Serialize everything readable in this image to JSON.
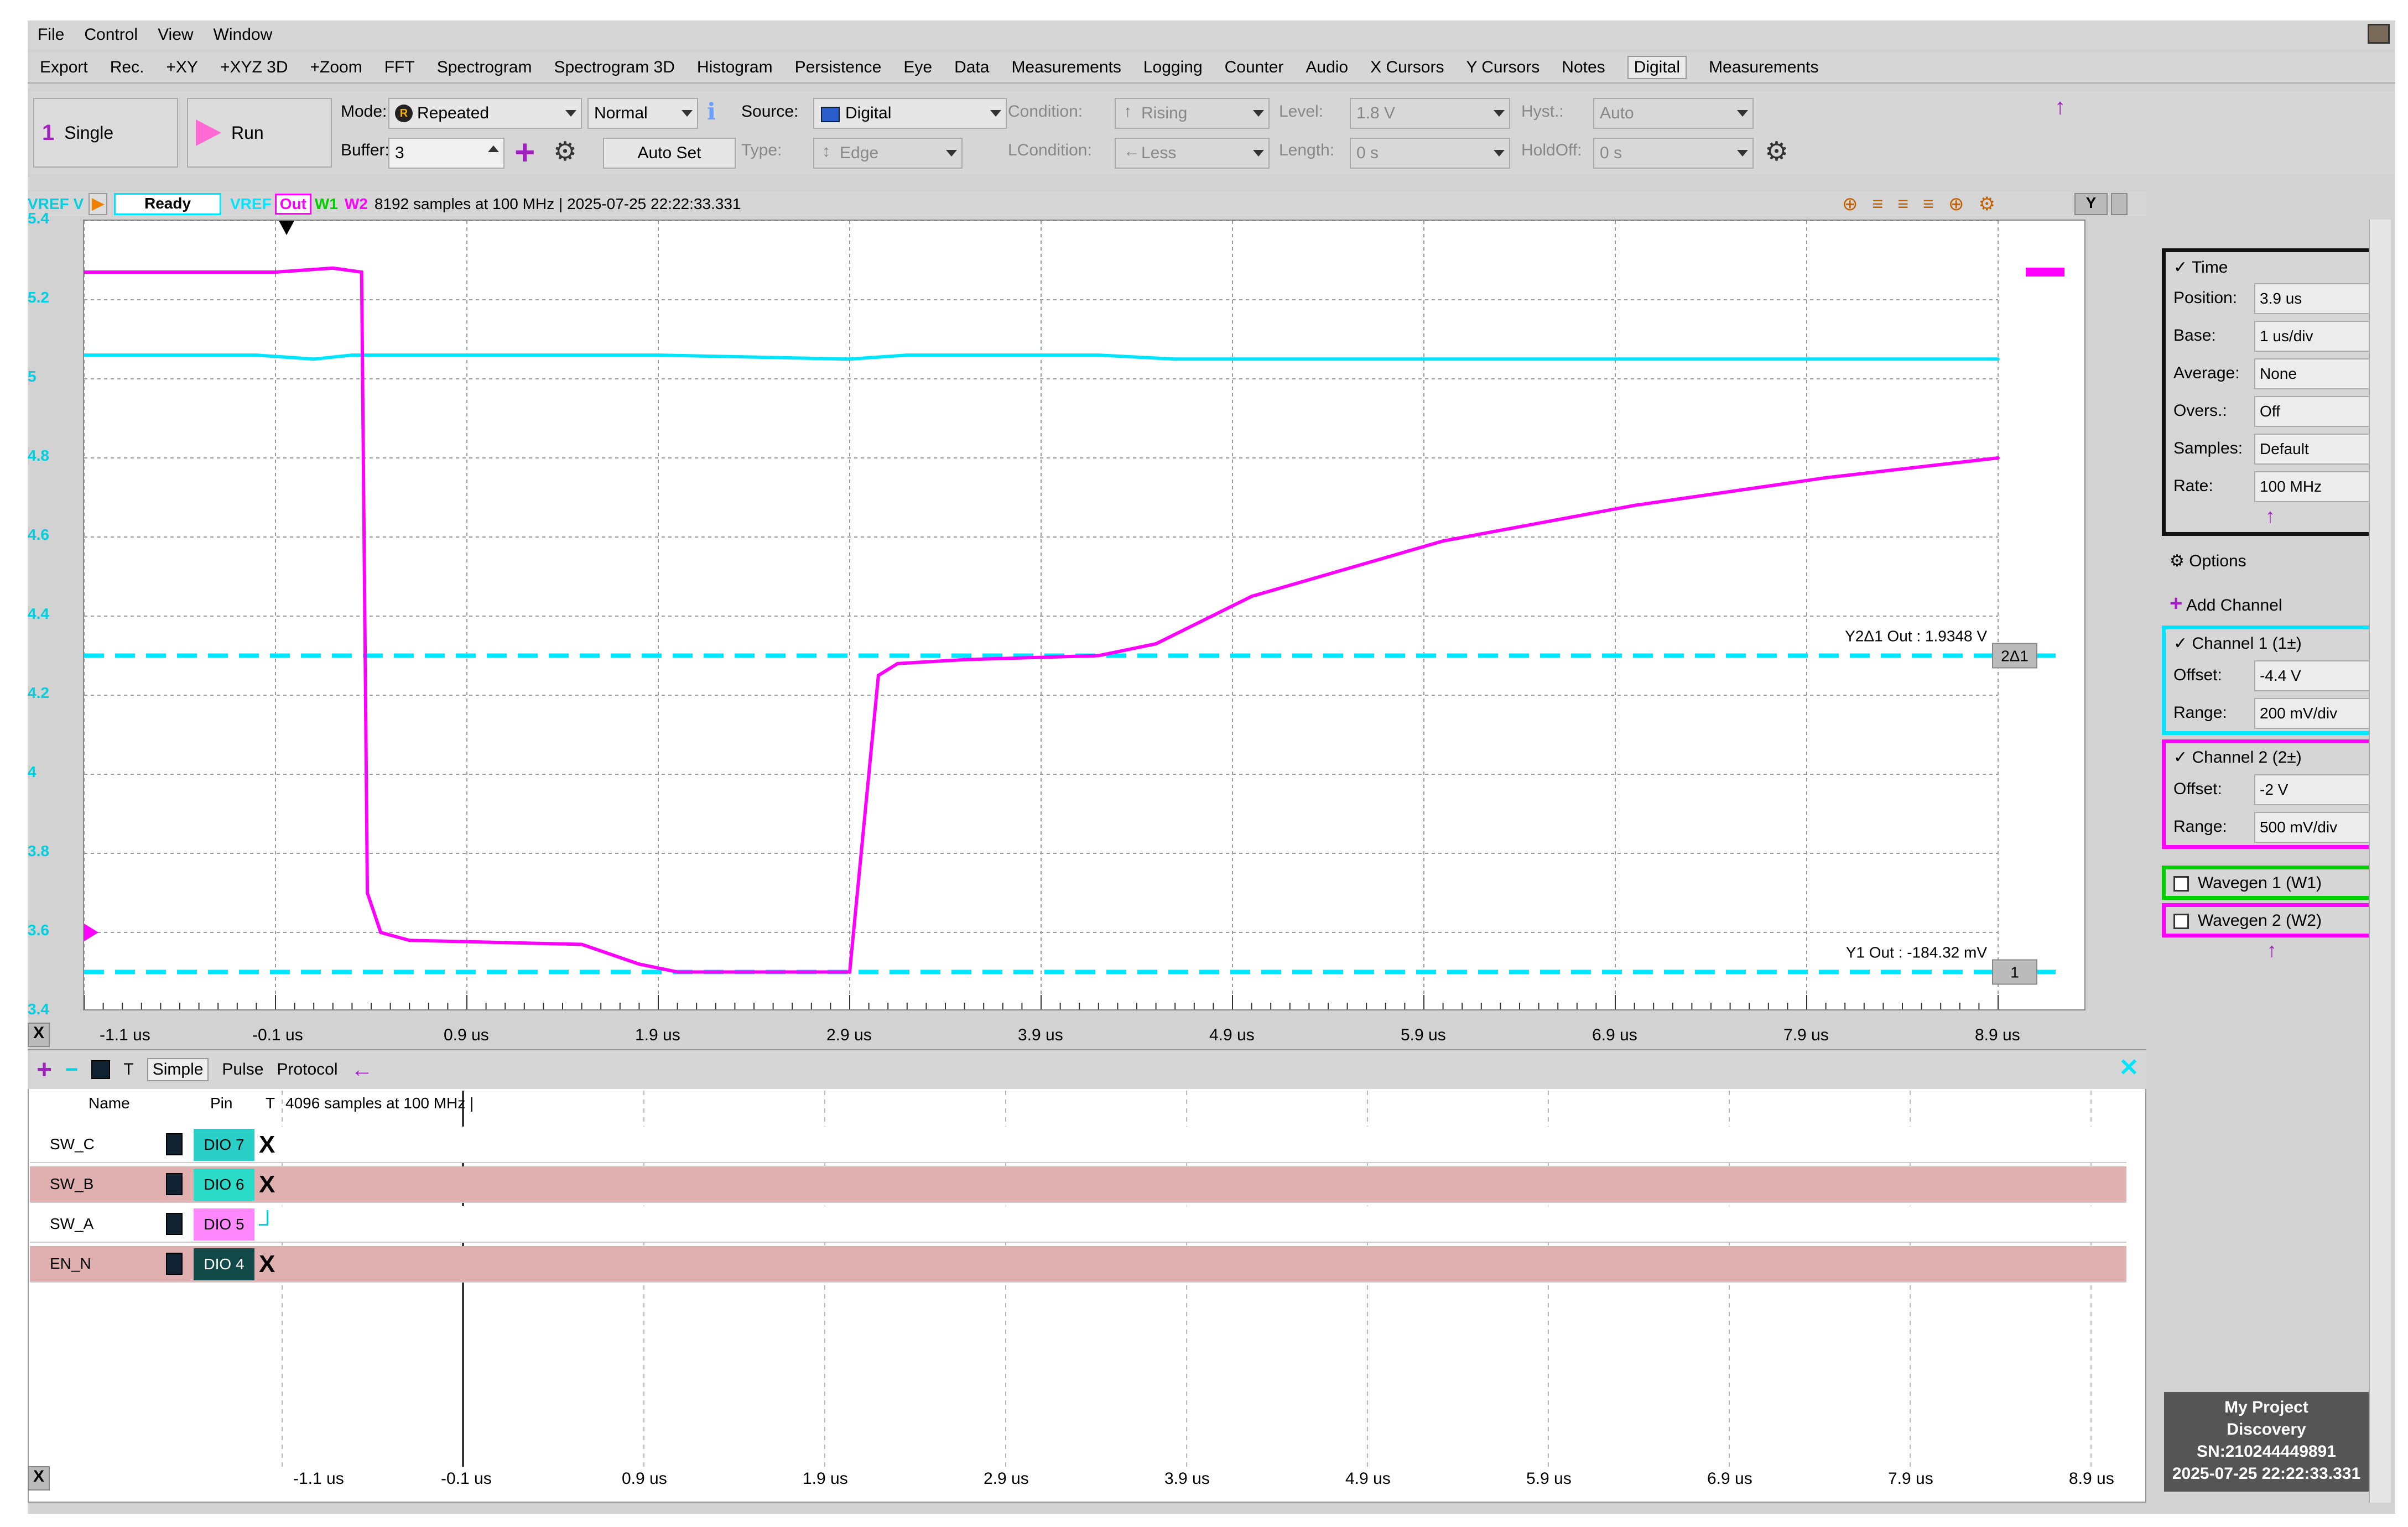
{
  "menu": {
    "items": [
      "File",
      "Control",
      "View",
      "Window"
    ]
  },
  "tabs": {
    "items": [
      "Export",
      "Rec.",
      "+XY",
      "+XYZ 3D",
      "+Zoom",
      "FFT",
      "Spectrogram",
      "Spectrogram 3D",
      "Histogram",
      "Persistence",
      "Eye",
      "Data",
      "Measurements",
      "Logging",
      "Counter",
      "Audio",
      "X Cursors",
      "Y Cursors",
      "Notes",
      "Digital",
      "Measurements"
    ],
    "active": "Digital"
  },
  "control": {
    "single_num": "1",
    "single": "Single",
    "run": "Run",
    "mode_label": "Mode:",
    "mode": "Repeated",
    "normal": "Normal",
    "buffer_label": "Buffer:",
    "buffer": "3",
    "autoset": "Auto Set",
    "source_label": "Source:",
    "source": "Digital",
    "type_label": "Type:",
    "type": "Edge",
    "condition_label": "Condition:",
    "condition": "Rising",
    "lcondition_label": "LCondition:",
    "lcondition": "Less",
    "level_label": "Level:",
    "level": "1.8 V",
    "length_label": "Length:",
    "length": "0 s",
    "hyst_label": "Hyst.:",
    "hyst": "Auto",
    "holdoff_label": "HoldOff:",
    "holdoff": "0 s"
  },
  "status": {
    "vref": "VREF V",
    "ready": "Ready",
    "ch_vref": "VREF",
    "ch_out": "Out",
    "ch_w1": "W1",
    "ch_w2": "W2",
    "info": "8192 samples at 100 MHz | 2025-07-25 22:22:33.331",
    "y_btn": "Y"
  },
  "scope": {
    "y_ticks": [
      "5.4",
      "5.2",
      "5",
      "4.8",
      "4.6",
      "4.4",
      "4.2",
      "4",
      "3.8",
      "3.6",
      "3.4"
    ],
    "x_ticks": [
      "-1.1 us",
      "-0.1 us",
      "0.9 us",
      "1.9 us",
      "2.9 us",
      "3.9 us",
      "4.9 us",
      "5.9 us",
      "6.9 us",
      "7.9 us",
      "8.9 us"
    ],
    "x_axis_btn": "X",
    "cursor1_label": "Y2Δ1 Out : 1.9348 V",
    "cursor1_tag": "2Δ1",
    "cursor2_label": "Y1 Out : -184.32 mV",
    "cursor2_tag": "1"
  },
  "chart_data": {
    "type": "line",
    "xlabel": "",
    "ylabel": "",
    "xlim": [
      -1.1,
      8.9
    ],
    "ylim": [
      3.4,
      5.4
    ],
    "grid": true,
    "series": [
      {
        "name": "VREF",
        "color": "#00e5ff",
        "x": [
          -1.1,
          -0.2,
          0.1,
          0.3,
          0.6,
          1.6,
          1.9,
          2.9,
          3.2,
          4.2,
          4.6,
          8.9
        ],
        "y": [
          5.06,
          5.06,
          5.05,
          5.06,
          5.06,
          5.06,
          5.06,
          5.05,
          5.06,
          5.06,
          5.05,
          5.05
        ]
      },
      {
        "name": "Out",
        "color": "#ff00ff",
        "x": [
          -1.1,
          -0.1,
          0.2,
          0.35,
          0.38,
          0.45,
          0.6,
          1.5,
          1.8,
          2.0,
          2.9,
          3.05,
          3.15,
          3.5,
          4.2,
          4.5,
          5.0,
          6.0,
          7.0,
          8.0,
          8.9
        ],
        "y": [
          5.27,
          5.27,
          5.28,
          5.27,
          3.7,
          3.6,
          3.58,
          3.57,
          3.52,
          3.5,
          3.5,
          4.25,
          4.28,
          4.29,
          4.3,
          4.33,
          4.45,
          4.59,
          4.68,
          4.75,
          4.8
        ]
      }
    ]
  },
  "right": {
    "time": "Time",
    "position_label": "Position:",
    "position": "3.9 us",
    "base_label": "Base:",
    "base": "1 us/div",
    "average_label": "Average:",
    "average": "None",
    "overs_label": "Overs.:",
    "overs": "Off",
    "samples_label": "Samples:",
    "samples": "Default",
    "rate_label": "Rate:",
    "rate": "100 MHz",
    "options": "Options",
    "add_channel": "Add Channel",
    "ch1": "Channel 1 (1±)",
    "ch1_offset_label": "Offset:",
    "ch1_offset": "-4.4 V",
    "ch1_range_label": "Range:",
    "ch1_range": "200 mV/div",
    "ch2": "Channel 2 (2±)",
    "ch2_offset_label": "Offset:",
    "ch2_offset": "-2 V",
    "ch2_range_label": "Range:",
    "ch2_range": "500 mV/div",
    "wg1": "Wavegen 1 (W1)",
    "wg2": "Wavegen 2 (W2)"
  },
  "logic": {
    "toolbar": {
      "t": "T",
      "simple": "Simple",
      "pulse": "Pulse",
      "protocol": "Protocol"
    },
    "name_header": "Name",
    "pin_header": "Pin",
    "t_header": "T",
    "info": "4096 samples at 100 MHz |",
    "rows": [
      {
        "name": "SW_C",
        "pin": "DIO 7",
        "trig": "X"
      },
      {
        "name": "SW_B",
        "pin": "DIO 6",
        "trig": "X"
      },
      {
        "name": "SW_A",
        "pin": "DIO 5",
        "trig": "┘"
      },
      {
        "name": "EN_N",
        "pin": "DIO 4",
        "trig": "X"
      }
    ],
    "x_ticks": [
      "-1.1 us",
      "-0.1 us",
      "0.9 us",
      "1.9 us",
      "2.9 us",
      "3.9 us",
      "4.9 us",
      "5.9 us",
      "6.9 us",
      "7.9 us",
      "8.9 us"
    ],
    "x_axis_btn": "X"
  },
  "device": {
    "line1": "My Project",
    "line2": "Discovery",
    "line3": "SN:210244449891",
    "line4": "2025-07-25 22:22:33.331"
  }
}
